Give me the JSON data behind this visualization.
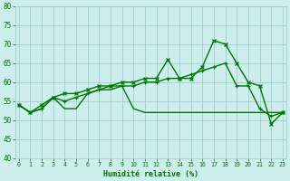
{
  "x": [
    0,
    1,
    2,
    3,
    4,
    5,
    6,
    7,
    8,
    9,
    10,
    11,
    12,
    13,
    14,
    15,
    16,
    17,
    18,
    19,
    20,
    21,
    22,
    23
  ],
  "line_bottom": [
    54,
    52,
    53,
    56,
    53,
    53,
    57,
    58,
    58,
    59,
    53,
    52,
    52,
    52,
    52,
    52,
    52,
    52,
    52,
    52,
    52,
    52,
    52,
    52
  ],
  "line_mid": [
    54,
    52,
    53,
    56,
    55,
    56,
    57,
    58,
    59,
    59,
    59,
    60,
    60,
    61,
    61,
    62,
    63,
    64,
    65,
    59,
    59,
    53,
    51,
    52
  ],
  "line_top": [
    54,
    52,
    54,
    56,
    57,
    57,
    58,
    59,
    59,
    60,
    60,
    61,
    61,
    66,
    61,
    61,
    64,
    71,
    70,
    65,
    60,
    59,
    49,
    52
  ],
  "background_color": "#ceeeed",
  "grid_color": "#9dcfcf",
  "line_color": "#007700",
  "xlabel": "Humidité relative (%)",
  "ylim": [
    40,
    80
  ],
  "xlim_min": -0.3,
  "xlim_max": 23.3,
  "yticks": [
    40,
    45,
    50,
    55,
    60,
    65,
    70,
    75,
    80
  ],
  "xticks": [
    0,
    1,
    2,
    3,
    4,
    5,
    6,
    7,
    8,
    9,
    10,
    11,
    12,
    13,
    14,
    15,
    16,
    17,
    18,
    19,
    20,
    21,
    22,
    23
  ],
  "xlabel_fontsize": 6.0,
  "ytick_fontsize": 5.5,
  "xtick_fontsize": 4.8,
  "linewidth": 1.0,
  "marker_size": 3.5
}
